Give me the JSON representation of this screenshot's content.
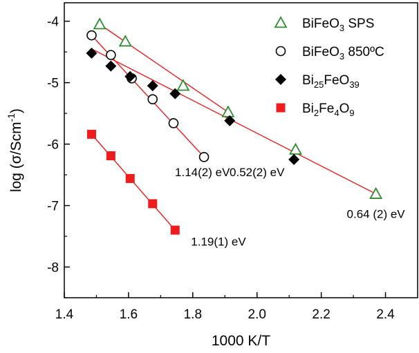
{
  "chart_data": {
    "type": "scatter",
    "xlabel": "1000 K/T",
    "ylabel": "log (σ/Scm-1)",
    "ylabel_parts": {
      "base": "log (σ/Scm",
      "sup": "-1",
      "close": ")"
    },
    "xlim": [
      1.4,
      2.5
    ],
    "ylim": [
      -8.5,
      -3.7
    ],
    "xticks": [
      "1.4",
      "1.6",
      "1.8",
      "2.0",
      "2.2",
      "2.4"
    ],
    "xtick_values": [
      1.4,
      1.6,
      1.8,
      2.0,
      2.2,
      2.4
    ],
    "yticks": [
      "-4",
      "-5",
      "-6",
      "-7",
      "-8"
    ],
    "ytick_values": [
      -4,
      -5,
      -6,
      -7,
      -8
    ],
    "grid": false,
    "legend_position": "top-right",
    "series": [
      {
        "name": "BiFeO3 SPS",
        "name_parts": [
          {
            "t": "BiFeO"
          },
          {
            "t": "3",
            "sub": true
          },
          {
            "t": " SPS"
          }
        ],
        "marker": "triangle-open",
        "color": "#2e8b2e",
        "x": [
          1.51,
          1.59,
          1.77,
          1.91,
          2.12,
          2.37
        ],
        "y": [
          -4.05,
          -4.33,
          -5.05,
          -5.48,
          -6.09,
          -6.81
        ],
        "fit": {
          "x": [
            1.51,
            1.91
          ],
          "y": [
            -4.05,
            -5.48
          ]
        }
      },
      {
        "name": "BiFeO3 850ºC",
        "name_parts": [
          {
            "t": "BiFeO"
          },
          {
            "t": "3",
            "sub": true
          },
          {
            "t": " 850ºC"
          }
        ],
        "marker": "circle-open",
        "color": "#000000",
        "x": [
          1.485,
          1.545,
          1.61,
          1.675,
          1.74,
          1.835
        ],
        "y": [
          -4.23,
          -4.55,
          -4.93,
          -5.27,
          -5.66,
          -6.21
        ],
        "fit": {
          "x": [
            1.485,
            1.835
          ],
          "y": [
            -4.23,
            -6.21
          ]
        }
      },
      {
        "name": "Bi25FeO39",
        "name_parts": [
          {
            "t": "Bi"
          },
          {
            "t": "25",
            "sub": true
          },
          {
            "t": "FeO"
          },
          {
            "t": "39",
            "sub": true
          }
        ],
        "marker": "diamond-filled",
        "color": "#000000",
        "x": [
          1.485,
          1.545,
          1.605,
          1.675,
          1.745,
          1.915,
          2.115
        ],
        "y": [
          -4.52,
          -4.73,
          -4.9,
          -5.05,
          -5.18,
          -5.62,
          -6.25
        ],
        "fit": {
          "x": [
            1.485,
            2.37
          ],
          "y": [
            -4.45,
            -6.81
          ]
        }
      },
      {
        "name": "Bi2Fe4O9",
        "name_parts": [
          {
            "t": "Bi"
          },
          {
            "t": "2",
            "sub": true
          },
          {
            "t": "Fe"
          },
          {
            "t": "4",
            "sub": true
          },
          {
            "t": "O"
          },
          {
            "t": "9",
            "sub": true
          }
        ],
        "marker": "square-filled",
        "color": "#ee1c1c",
        "x": [
          1.485,
          1.545,
          1.605,
          1.675,
          1.745
        ],
        "y": [
          -5.84,
          -6.19,
          -6.56,
          -6.97,
          -7.4
        ],
        "fit": {
          "x": [
            1.485,
            1.745
          ],
          "y": [
            -5.84,
            -7.4
          ]
        }
      }
    ],
    "fit_line_color": "#ee1c1c",
    "annotations": [
      {
        "text": "1.14(2) eV",
        "x": 1.83,
        "y": -6.52
      },
      {
        "text": "0.52(2) eV",
        "x": 2.0,
        "y": -6.52
      },
      {
        "text": "0.64 (2) eV",
        "x": 2.37,
        "y": -7.2
      },
      {
        "text": "1.19(1) eV",
        "x": 1.88,
        "y": -7.65
      }
    ]
  }
}
